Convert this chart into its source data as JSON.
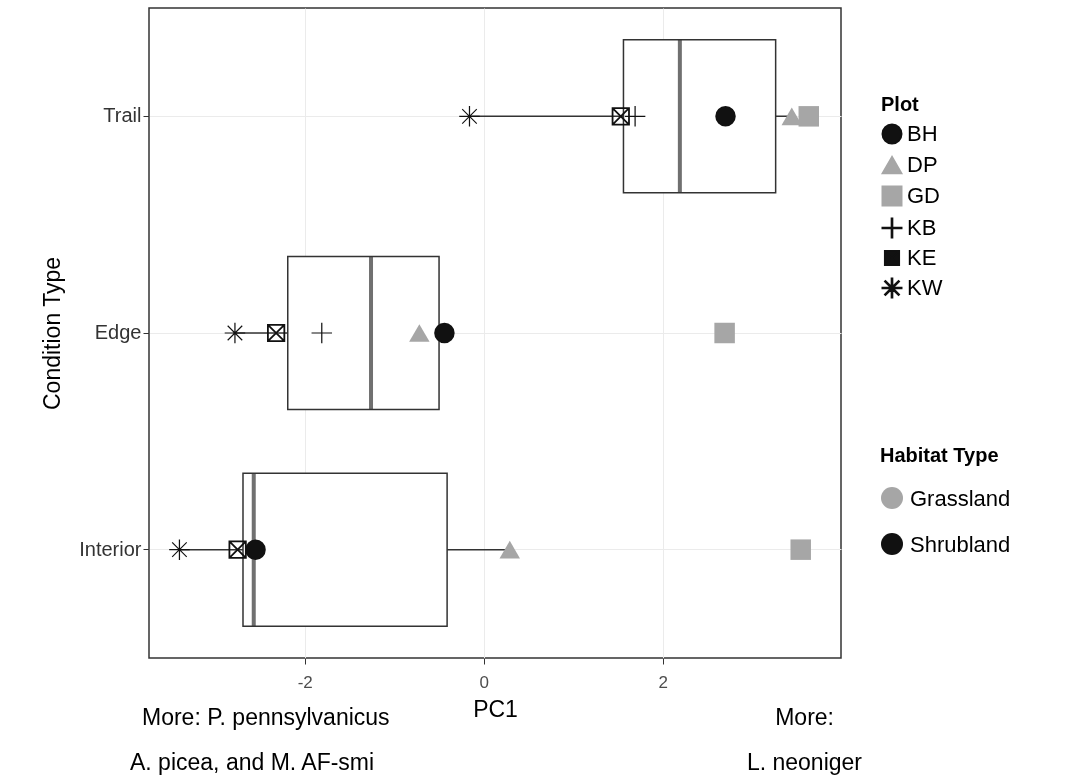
{
  "chart_data": {
    "type": "box",
    "orientation": "horizontal",
    "xlabel": "PC1",
    "ylabel": "Condition Type",
    "legend_title": [
      "Plot",
      "Habitat Type"
    ],
    "legend": "right",
    "grid": true,
    "categories": [
      "Trail",
      "Edge",
      "Interior"
    ],
    "xlim": [
      -3.74,
      3.99
    ],
    "xticks": [
      -2,
      0,
      2
    ],
    "boxes": [
      {
        "low": -0.16,
        "q1": 1.56,
        "median": 2.19,
        "q3": 3.26,
        "high": 3.44
      },
      {
        "low": -2.78,
        "q1": -2.19,
        "median": -1.26,
        "q3": -0.5,
        "high": -0.44
      },
      {
        "low": -3.4,
        "q1": -2.69,
        "median": -2.57,
        "q3": -0.41,
        "high": 0.29
      }
    ],
    "series": [
      {
        "name": "BH",
        "type": "scatter",
        "marker": "circle",
        "color": "#111111",
        "x": [
          "Trail",
          "Edge",
          "Interior"
        ],
        "values": [
          2.7,
          -0.44,
          -2.55
        ]
      },
      {
        "name": "DP",
        "type": "scatter",
        "marker": "triangle",
        "color": "#a6a6a6",
        "x": [
          "Trail",
          "Edge",
          "Interior"
        ],
        "values": [
          3.44,
          -0.72,
          0.29
        ]
      },
      {
        "name": "GD",
        "type": "scatter",
        "marker": "square",
        "color": "#a6a6a6",
        "x": [
          "Trail",
          "Edge",
          "Interior"
        ],
        "values": [
          3.63,
          2.69,
          3.54
        ]
      },
      {
        "name": "KB",
        "type": "scatter",
        "marker": "cross",
        "color": "#111111",
        "x": [
          "Trail",
          "Edge"
        ],
        "values": [
          1.69,
          -1.81
        ]
      },
      {
        "name": "KE",
        "type": "scatter",
        "color": "#111111",
        "x": [
          "Trail",
          "Edge",
          "Interior"
        ],
        "values": [
          1.53,
          -2.32,
          -2.75
        ]
      },
      {
        "name": "KW",
        "type": "scatter",
        "marker": "star",
        "color": "#111111",
        "x": [
          "Trail",
          "Edge",
          "Interior"
        ],
        "values": [
          -0.16,
          -2.78,
          -3.4
        ]
      },
      {
        "name": "Grassland",
        "type": "scatter",
        "color": "#a6a6a6",
        "x": [
          "Trail",
          "Edge",
          "Interior"
        ],
        "values": [
          null,
          null,
          null
        ]
      },
      {
        "name": "Shrubland",
        "type": "scatter",
        "color": "#111111",
        "x": [
          "Trail",
          "Edge",
          "Interior"
        ],
        "values": [
          null,
          null,
          null
        ]
      }
    ],
    "annotations": [
      "More:  P. pennsylvanicus",
      "A. picea, and M. AF-smi",
      "More:",
      "L. neoniger"
    ]
  }
}
